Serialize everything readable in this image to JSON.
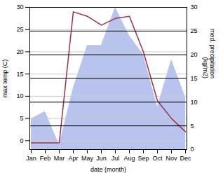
{
  "chart_data": {
    "type": "line",
    "categories": [
      "Jan",
      "Feb",
      "Mar",
      "Apr",
      "May",
      "Jun",
      "Jul",
      "Aug",
      "Sep",
      "Oct",
      "Nov",
      "Dec"
    ],
    "series": [
      {
        "type": "line",
        "color": "#a03050",
        "values": [
          -0.5,
          -0.5,
          -0.5,
          29.0,
          28.0,
          26.0,
          27.5,
          28.0,
          20.0,
          9.0,
          5.0,
          2.0
        ]
      },
      {
        "type": "area",
        "color": "#b8c4ee",
        "axis": "y2",
        "values": [
          6.5,
          8.0,
          1.0,
          13.0,
          22.0,
          22.0,
          30.0,
          24.0,
          20.0,
          9.0,
          19.0,
          11.0
        ]
      }
    ],
    "xlabel": "date (month)",
    "ylabel": "max temp (C)",
    "y2label": "med. precipitation\n(kg/m2)",
    "ylim": [
      -2,
      30
    ],
    "yticks": [
      0,
      5,
      10,
      15,
      20,
      25,
      30
    ],
    "y2lim": [
      0,
      30
    ],
    "y2ticks": [
      0,
      5,
      10,
      15,
      20,
      25,
      30
    ],
    "grid": true
  }
}
